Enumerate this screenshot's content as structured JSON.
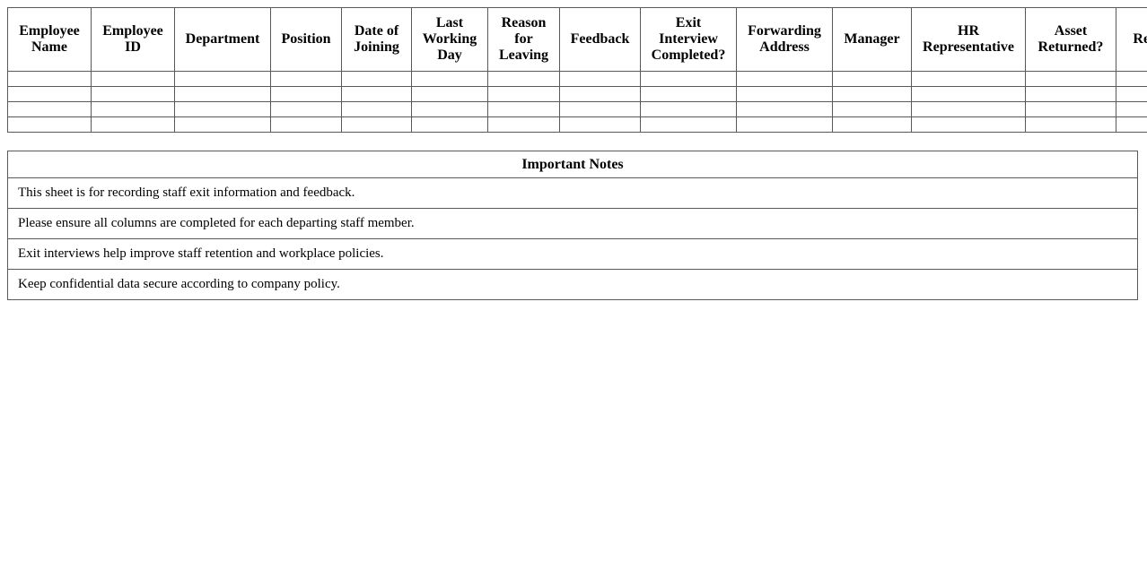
{
  "colors": {
    "background": "#ffffff",
    "text": "#000000",
    "table_border": "#595959"
  },
  "exit_table": {
    "columns": [
      "Employee Name",
      "Employee ID",
      "Department",
      "Position",
      "Date of Joining",
      "Last Working Day",
      "Reason for Leaving",
      "Feedback",
      "Exit Interview Completed?",
      "Forwarding Address",
      "Manager",
      "HR Representative",
      "Asset Returned?",
      "Remarks"
    ],
    "empty_row_count": 4
  },
  "notes": {
    "title": "Important Notes",
    "items": [
      "This sheet is for recording staff exit information and feedback.",
      "Please ensure all columns are completed for each departing staff member.",
      "Exit interviews help improve staff retention and workplace policies.",
      "Keep confidential data secure according to company policy."
    ]
  }
}
